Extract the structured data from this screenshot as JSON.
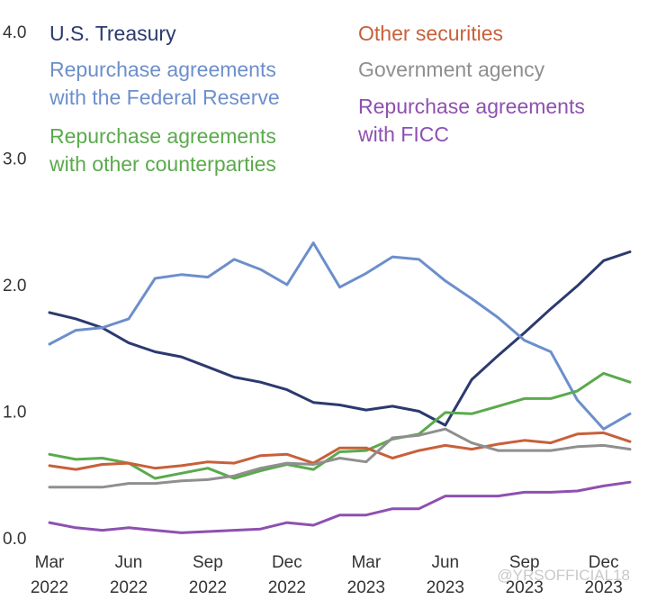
{
  "chart_data": {
    "type": "line",
    "title": "",
    "xlabel": "",
    "ylabel": "",
    "ylim": [
      0,
      4
    ],
    "y_ticks": [
      "0.0",
      "1.0",
      "2.0",
      "3.0",
      "4.0"
    ],
    "x_ticks": [
      {
        "month": "Mar",
        "year": "2022",
        "index": 0
      },
      {
        "month": "Jun",
        "year": "2022",
        "index": 3
      },
      {
        "month": "Sep",
        "year": "2022",
        "index": 6
      },
      {
        "month": "Dec",
        "year": "2022",
        "index": 9
      },
      {
        "month": "Mar",
        "year": "2023",
        "index": 12
      },
      {
        "month": "Jun",
        "year": "2023",
        "index": 15
      },
      {
        "month": "Sep",
        "year": "2023",
        "index": 18
      },
      {
        "month": "Dec",
        "year": "2023",
        "index": 21
      }
    ],
    "x": [
      "Mar 2022",
      "Apr 2022",
      "May 2022",
      "Jun 2022",
      "Jul 2022",
      "Aug 2022",
      "Sep 2022",
      "Oct 2022",
      "Nov 2022",
      "Dec 2022",
      "Jan 2023",
      "Feb 2023",
      "Mar 2023",
      "Apr 2023",
      "May 2023",
      "Jun 2023",
      "Jul 2023",
      "Aug 2023",
      "Sep 2023",
      "Oct 2023",
      "Nov 2023",
      "Dec 2023",
      "Jan 2024"
    ],
    "series": [
      {
        "name": "U.S. Treasury",
        "color": "#2b3a6e",
        "legend_lines": [
          "U.S. Treasury"
        ],
        "legend_col": 0,
        "legend_row": 0,
        "values": [
          1.78,
          1.73,
          1.66,
          1.54,
          1.47,
          1.43,
          1.35,
          1.27,
          1.23,
          1.17,
          1.07,
          1.05,
          1.01,
          1.04,
          1.0,
          0.89,
          1.25,
          1.44,
          1.62,
          1.81,
          1.99,
          2.19,
          2.26
        ]
      },
      {
        "name": "Repurchase agreements with the Federal Reserve",
        "color": "#6c8fcb",
        "legend_lines": [
          "Repurchase agreements",
          "with the Federal Reserve"
        ],
        "legend_col": 0,
        "legend_row": 1,
        "values": [
          1.53,
          1.64,
          1.66,
          1.73,
          2.05,
          2.08,
          2.06,
          2.2,
          2.12,
          2.0,
          2.33,
          1.98,
          2.09,
          2.22,
          2.2,
          2.03,
          1.89,
          1.74,
          1.56,
          1.47,
          1.09,
          0.86,
          0.98
        ]
      },
      {
        "name": "Repurchase agreements with other counterparties",
        "color": "#5aaa4c",
        "legend_lines": [
          "Repurchase agreements",
          "with other counterparties"
        ],
        "legend_col": 0,
        "legend_row": 2,
        "values": [
          0.66,
          0.62,
          0.63,
          0.59,
          0.47,
          0.51,
          0.55,
          0.47,
          0.53,
          0.58,
          0.54,
          0.68,
          0.69,
          0.78,
          0.82,
          0.99,
          0.98,
          1.04,
          1.1,
          1.1,
          1.16,
          1.3,
          1.23
        ]
      },
      {
        "name": "Other securities",
        "color": "#c8603a",
        "legend_lines": [
          "Other securities"
        ],
        "legend_col": 1,
        "legend_row": 0,
        "values": [
          0.57,
          0.54,
          0.58,
          0.59,
          0.55,
          0.57,
          0.6,
          0.59,
          0.65,
          0.66,
          0.59,
          0.71,
          0.71,
          0.63,
          0.69,
          0.73,
          0.7,
          0.74,
          0.77,
          0.75,
          0.82,
          0.83,
          0.76
        ]
      },
      {
        "name": "Government agency",
        "color": "#8f8f8f",
        "legend_lines": [
          "Government agency"
        ],
        "legend_col": 1,
        "legend_row": 1,
        "values": [
          0.4,
          0.4,
          0.4,
          0.43,
          0.43,
          0.45,
          0.46,
          0.49,
          0.55,
          0.59,
          0.58,
          0.63,
          0.6,
          0.79,
          0.81,
          0.86,
          0.75,
          0.69,
          0.69,
          0.69,
          0.72,
          0.73,
          0.7
        ]
      },
      {
        "name": "Repurchase agreements with FICC",
        "color": "#8e50b0",
        "legend_lines": [
          "Repurchase agreements",
          "with FICC"
        ],
        "legend_col": 1,
        "legend_row": 2,
        "values": [
          0.12,
          0.08,
          0.06,
          0.08,
          0.06,
          0.04,
          0.05,
          0.06,
          0.07,
          0.12,
          0.1,
          0.18,
          0.18,
          0.23,
          0.23,
          0.33,
          0.33,
          0.33,
          0.36,
          0.36,
          0.37,
          0.41,
          0.44
        ]
      }
    ]
  },
  "watermark": "@YRSOFFICIAL18"
}
